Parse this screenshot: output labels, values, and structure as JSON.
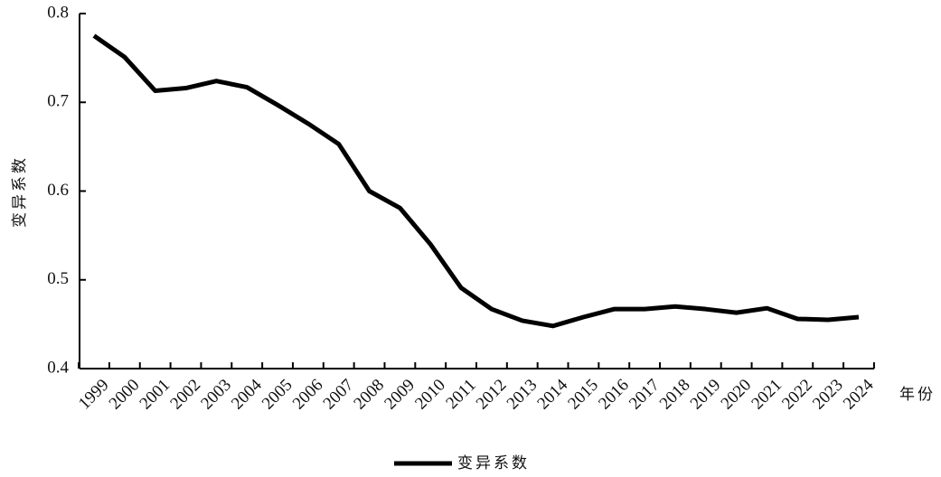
{
  "chart_data": {
    "type": "line",
    "y_label": "变异系数",
    "x_label": "年份",
    "categories": [
      "1999",
      "2000",
      "2001",
      "2002",
      "2003",
      "2004",
      "2005",
      "2006",
      "2007",
      "2008",
      "2009",
      "2010",
      "2011",
      "2012",
      "2013",
      "2014",
      "2015",
      "2016",
      "2017",
      "2018",
      "2019",
      "2020",
      "2021",
      "2022",
      "2023",
      "2024"
    ],
    "series": [
      {
        "name": "变异系数",
        "color": "#000000",
        "values": [
          0.775,
          0.751,
          0.713,
          0.716,
          0.724,
          0.717,
          0.697,
          0.676,
          0.653,
          0.6,
          0.581,
          0.54,
          0.491,
          0.467,
          0.454,
          0.448,
          0.458,
          0.467,
          0.467,
          0.47,
          0.467,
          0.463,
          0.468,
          0.456,
          0.455,
          0.458
        ]
      }
    ],
    "ylim": [
      0.4,
      0.8
    ],
    "yticks": [
      {
        "value": 0.4,
        "label": "0.4"
      },
      {
        "value": 0.5,
        "label": "0.5"
      },
      {
        "value": 0.6,
        "label": "0.6"
      },
      {
        "value": 0.7,
        "label": "0.7"
      },
      {
        "value": 0.8,
        "label": "0.8"
      }
    ],
    "grid": false,
    "legend": "bottom"
  }
}
